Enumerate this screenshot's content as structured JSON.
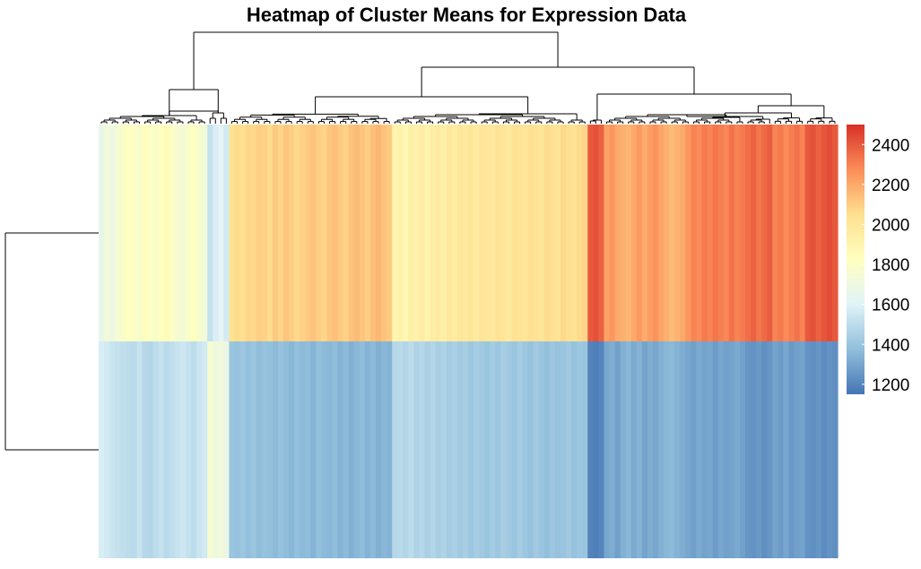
{
  "chart_data": {
    "type": "heatmap",
    "title": "Heatmap of Cluster Means for Expression Data",
    "colorbar": {
      "min": 1150,
      "max": 2500,
      "ticks": [
        1200,
        1400,
        1600,
        1800,
        2000,
        2200,
        2400
      ],
      "colors": [
        "#4575b4",
        "#91bfdb",
        "#e0f3f8",
        "#ffffbf",
        "#fee090",
        "#fc8d59",
        "#d73027"
      ],
      "position": "right"
    },
    "row_dendrogram": true,
    "column_dendrogram": true,
    "rows": 2,
    "column_groups": [
      {
        "count": 20,
        "top": [
          1660,
          1720,
          1690,
          1750,
          1790,
          1820,
          1800,
          1770,
          1840,
          1810,
          1780,
          1830,
          1850,
          1800,
          1760,
          1740,
          1790,
          1820,
          1770,
          1730
        ],
        "bottom": [
          1580,
          1560,
          1540,
          1520,
          1510,
          1500,
          1490,
          1530,
          1480,
          1470,
          1500,
          1520,
          1490,
          1510,
          1530,
          1550,
          1520,
          1500,
          1540,
          1560
        ]
      },
      {
        "count": 4,
        "top": [
          1520,
          1580,
          1620,
          1560
        ],
        "bottom": [
          1760,
          1700,
          1720,
          1680
        ]
      },
      {
        "count": 30,
        "top": [
          2030,
          2060,
          2050,
          2080,
          2070,
          2100,
          2090,
          2060,
          2110,
          2080,
          2120,
          2100,
          2070,
          2090,
          2110,
          2130,
          2100,
          2080,
          2120,
          2140,
          2110,
          2090,
          2130,
          2150,
          2120,
          2100,
          2140,
          2160,
          2130,
          2110
        ],
        "bottom": [
          1400,
          1390,
          1410,
          1380,
          1400,
          1370,
          1390,
          1380,
          1360,
          1390,
          1370,
          1350,
          1380,
          1360,
          1370,
          1340,
          1380,
          1360,
          1350,
          1370,
          1340,
          1360,
          1330,
          1350,
          1370,
          1340,
          1360,
          1330,
          1350,
          1340
        ]
      },
      {
        "count": 36,
        "top": [
          1900,
          1920,
          1880,
          1940,
          1930,
          1960,
          1910,
          1950,
          1970,
          1940,
          1990,
          1960,
          2000,
          1980,
          2010,
          1970,
          2020,
          2000,
          1990,
          2030,
          2010,
          1980,
          2040,
          2020,
          2000,
          2050,
          2030,
          2010,
          2060,
          2040,
          2020,
          2070,
          2050,
          2030,
          2060,
          2080
        ],
        "bottom": [
          1480,
          1490,
          1470,
          1500,
          1460,
          1480,
          1450,
          1470,
          1440,
          1460,
          1430,
          1450,
          1420,
          1440,
          1410,
          1430,
          1420,
          1400,
          1430,
          1410,
          1440,
          1420,
          1400,
          1430,
          1410,
          1390,
          1420,
          1400,
          1380,
          1410,
          1390,
          1400,
          1420,
          1390,
          1410,
          1400
        ]
      },
      {
        "count": 3,
        "top": [
          2400,
          2420,
          2380
        ],
        "bottom": [
          1190,
          1180,
          1200
        ]
      },
      {
        "count": 26,
        "top": [
          2220,
          2250,
          2200,
          2180,
          2160,
          2200,
          2240,
          2190,
          2230,
          2260,
          2210,
          2180,
          2150,
          2170,
          2200,
          2250,
          2300,
          2280,
          2320,
          2300,
          2330,
          2310,
          2290,
          2340,
          2300,
          2320
        ],
        "bottom": [
          1300,
          1320,
          1280,
          1330,
          1350,
          1310,
          1340,
          1290,
          1320,
          1300,
          1330,
          1350,
          1360,
          1340,
          1320,
          1300,
          1280,
          1310,
          1290,
          1300,
          1270,
          1300,
          1280,
          1290,
          1310,
          1280
        ]
      },
      {
        "count": 5,
        "top": [
          2350,
          2380,
          2330,
          2360,
          2390
        ],
        "bottom": [
          1250,
          1240,
          1260,
          1230,
          1250
        ]
      },
      {
        "count": 6,
        "top": [
          2300,
          2320,
          2280,
          2310,
          2340,
          2300
        ],
        "bottom": [
          1290,
          1270,
          1300,
          1260,
          1280,
          1290
        ]
      },
      {
        "count": 6,
        "top": [
          2400,
          2420,
          2380,
          2410,
          2430,
          2400
        ],
        "bottom": [
          1240,
          1230,
          1250,
          1220,
          1240,
          1230
        ]
      }
    ]
  }
}
